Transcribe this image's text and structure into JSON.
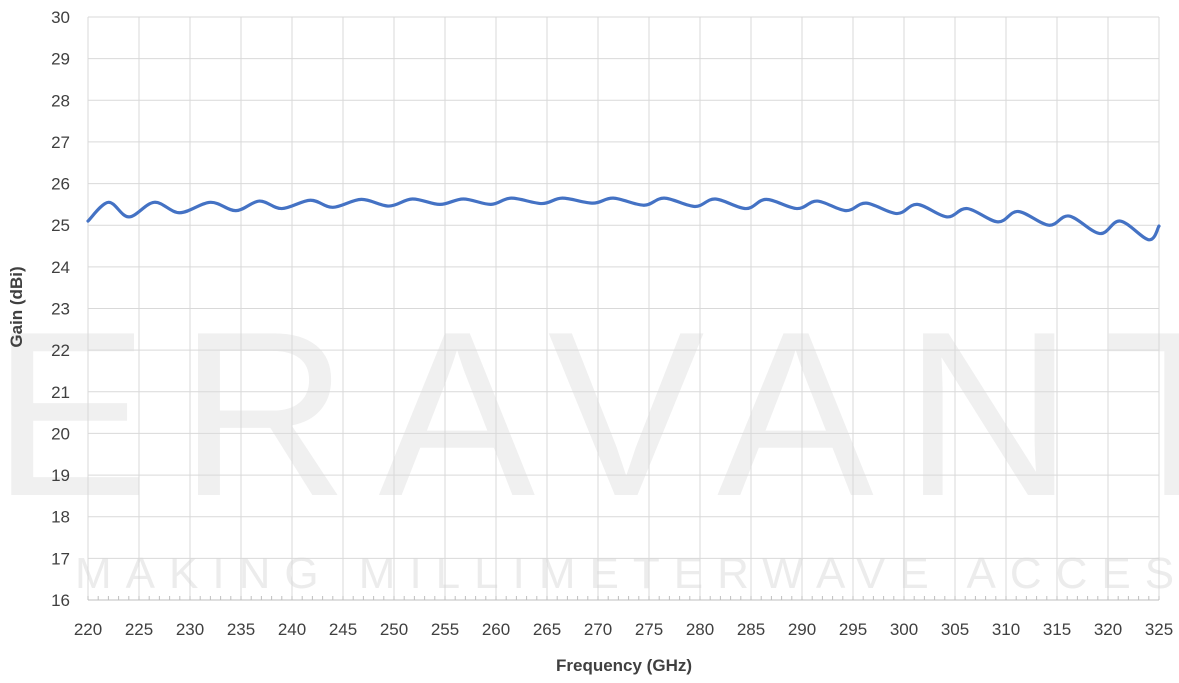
{
  "chart_data": {
    "type": "line",
    "title": "",
    "xlabel": "Frequency (GHz)",
    "ylabel": "Gain (dBi)",
    "xlim": [
      220,
      325
    ],
    "ylim": [
      16,
      30
    ],
    "x_ticks": [
      220,
      225,
      230,
      235,
      240,
      245,
      250,
      255,
      260,
      265,
      270,
      275,
      280,
      285,
      290,
      295,
      300,
      305,
      310,
      315,
      320,
      325
    ],
    "y_ticks": [
      16,
      17,
      18,
      19,
      20,
      21,
      22,
      23,
      24,
      25,
      26,
      27,
      28,
      29,
      30
    ],
    "grid": true,
    "legend": "none",
    "line_color": "#4472c4",
    "series": [
      {
        "x": [
          220,
          222,
          224,
          226.5,
          229,
          232,
          234.5,
          236.8,
          239,
          241.8,
          244,
          246.8,
          249.5,
          251.8,
          254.5,
          256.8,
          259.5,
          261.5,
          264.5,
          266.5,
          269.5,
          271.5,
          274.5,
          276.5,
          279.5,
          281.5,
          284.5,
          286.5,
          289.5,
          291.5,
          294.3,
          296.3,
          299.3,
          301.3,
          304.2,
          306.2,
          309.2,
          311.2,
          314.2,
          316.2,
          319.2,
          321.2,
          324,
          325
        ],
        "y": [
          25.1,
          25.55,
          25.2,
          25.55,
          25.3,
          25.55,
          25.35,
          25.58,
          25.4,
          25.6,
          25.43,
          25.62,
          25.46,
          25.63,
          25.5,
          25.63,
          25.5,
          25.65,
          25.52,
          25.65,
          25.53,
          25.65,
          25.48,
          25.65,
          25.45,
          25.63,
          25.4,
          25.62,
          25.4,
          25.58,
          25.35,
          25.53,
          25.28,
          25.5,
          25.2,
          25.4,
          25.08,
          25.33,
          25.0,
          25.22,
          24.8,
          25.1,
          24.65,
          24.98
        ]
      }
    ],
    "watermark": {
      "text": "ERAVANT",
      "tagline": "MAKING MILLIMETERWAVE ACCESSIBLE"
    }
  }
}
